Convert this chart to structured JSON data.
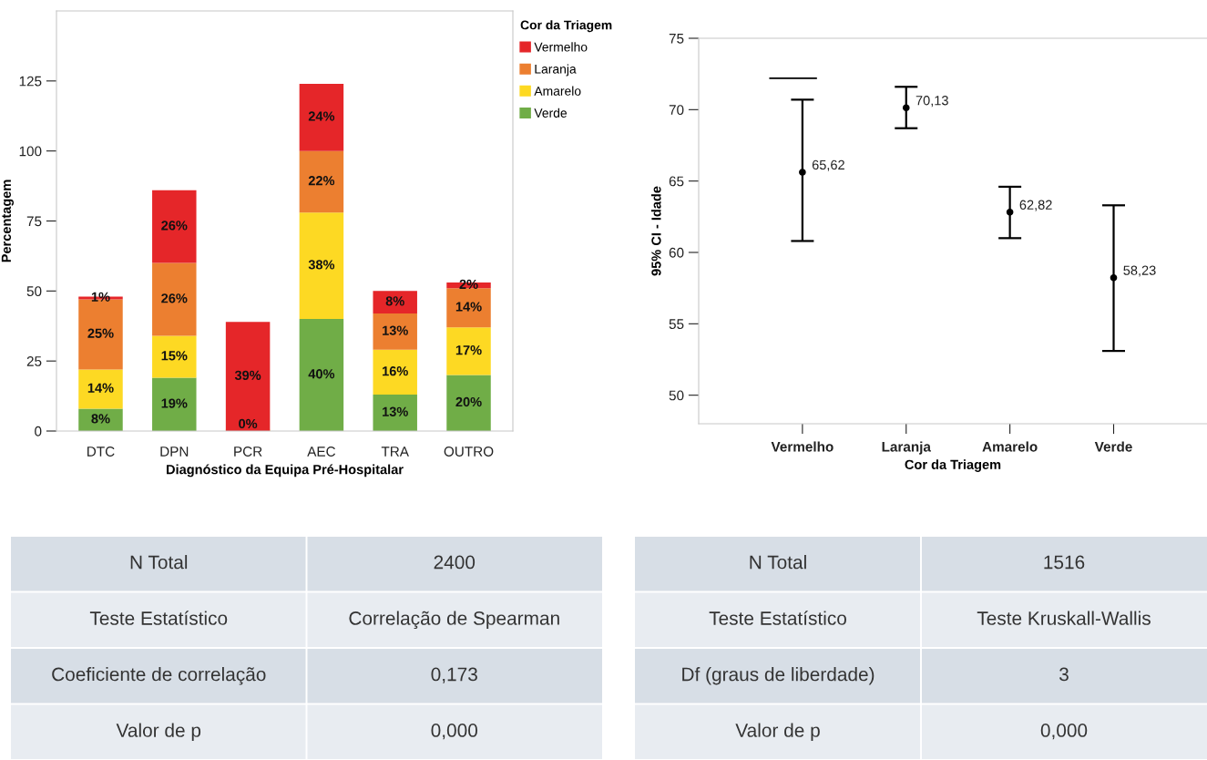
{
  "chart_data": [
    {
      "type": "bar",
      "stacked": true,
      "xlabel": "Diagnóstico da Equipa Pré-Hospitalar",
      "ylabel": "Percentagem",
      "legend_title": "Cor da Triagem",
      "legend": "right",
      "categories": [
        "DTC",
        "DPN",
        "PCR",
        "AEC",
        "TRA",
        "OUTRO"
      ],
      "ylim": [
        0,
        150
      ],
      "yticks": [
        0,
        25,
        50,
        75,
        100,
        125
      ],
      "grid": false,
      "series": [
        {
          "name": "Verde",
          "color": "#70ad47",
          "values": [
            8,
            19,
            null,
            40,
            13,
            20
          ],
          "value_labels": [
            "8%",
            "19%",
            null,
            "40%",
            "13%",
            "20%"
          ]
        },
        {
          "name": "Amarelo",
          "color": "#fdd923",
          "values": [
            14,
            15,
            0,
            38,
            16,
            17
          ],
          "value_labels": [
            "14%",
            "15%",
            "0%",
            "38%",
            "16%",
            "17%"
          ]
        },
        {
          "name": "Laranja",
          "color": "#ec7f30",
          "values": [
            25,
            26,
            null,
            22,
            13,
            14
          ],
          "value_labels": [
            "25%",
            "26%",
            null,
            "22%",
            "13%",
            "14%"
          ]
        },
        {
          "name": "Vermelho",
          "color": "#e52629",
          "values": [
            1,
            26,
            39,
            24,
            8,
            2
          ],
          "value_labels": [
            "1%",
            "26%",
            "39%",
            "24%",
            "8%",
            "2%"
          ]
        }
      ]
    },
    {
      "type": "scatter",
      "xlabel": "Cor da Triagem",
      "ylabel": "95% CI - Idade",
      "categories": [
        "Vermelho",
        "Laranja",
        "Amarelo",
        "Verde"
      ],
      "ylim": [
        48,
        75
      ],
      "yticks": [
        50,
        55,
        60,
        65,
        70,
        75
      ],
      "grid": false,
      "marker": "circle",
      "series": [
        {
          "color": "#000000",
          "values": [
            65.62,
            70.13,
            62.82,
            58.23
          ],
          "errors": [
            [
              60.8,
              70.7
            ],
            [
              68.7,
              71.6
            ],
            [
              61.0,
              64.6
            ],
            [
              53.1,
              63.3
            ]
          ],
          "value_labels": [
            "65,62",
            "70,13",
            "62,82",
            "58,23"
          ]
        }
      ],
      "ref_lines": [
        {
          "axis": "y",
          "value": 72.2,
          "color": "#000000"
        }
      ]
    },
    {
      "type": "other",
      "annotations": [
        "N Total",
        "2400",
        "Teste Estatístico",
        "Correlação de Spearman",
        "Coeficiente de correlação",
        "0,173",
        "Valor de p",
        "0,000"
      ]
    },
    {
      "type": "other",
      "annotations": [
        "N Total",
        "1516",
        "Teste Estatístico",
        "Teste Kruskall-Wallis",
        "Df (graus de liberdade)",
        "3",
        "Valor de p",
        "0,000"
      ]
    }
  ]
}
